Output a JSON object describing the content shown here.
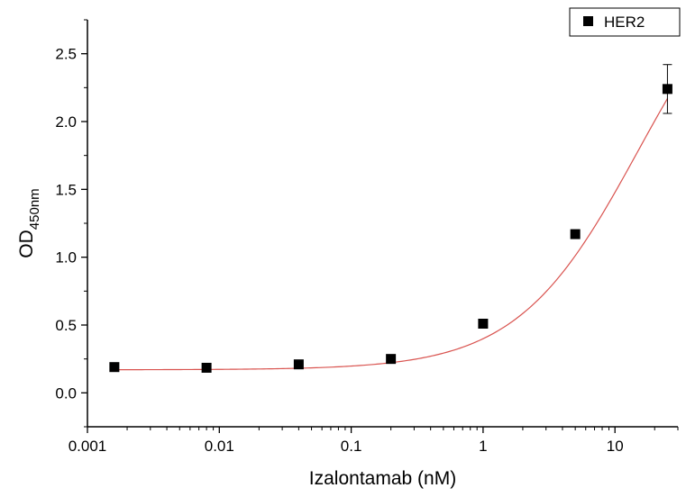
{
  "chart_data": {
    "type": "scatter",
    "title": "",
    "xlabel": "Izalontamab (nM)",
    "ylabel": {
      "main": "OD",
      "sub": "450nm"
    },
    "xscale": "log",
    "xlim": [
      0.001,
      30
    ],
    "ylim": [
      -0.25,
      2.75
    ],
    "xticks": [
      {
        "value": 0.001,
        "label": "0.001"
      },
      {
        "value": 0.01,
        "label": "0.01"
      },
      {
        "value": 0.1,
        "label": "0.1"
      },
      {
        "value": 1,
        "label": "1"
      },
      {
        "value": 10,
        "label": "10"
      }
    ],
    "yticks": [
      {
        "value": 0.0,
        "label": "0.0"
      },
      {
        "value": 0.5,
        "label": "0.5"
      },
      {
        "value": 1.0,
        "label": "1.0"
      },
      {
        "value": 1.5,
        "label": "1.5"
      },
      {
        "value": 2.0,
        "label": "2.0"
      },
      {
        "value": 2.5,
        "label": "2.5"
      }
    ],
    "grid": false,
    "legend_position": "top-right",
    "series": [
      {
        "name": "HER2",
        "marker": "square",
        "color": "#000000",
        "points": [
          {
            "x": 0.0016,
            "y": 0.19
          },
          {
            "x": 0.008,
            "y": 0.185
          },
          {
            "x": 0.04,
            "y": 0.21
          },
          {
            "x": 0.2,
            "y": 0.25
          },
          {
            "x": 1.0,
            "y": 0.51
          },
          {
            "x": 5.0,
            "y": 1.17
          },
          {
            "x": 25.0,
            "y": 2.24,
            "error": 0.18
          }
        ]
      }
    ],
    "fit": {
      "color": "#d9534f",
      "model": "4PL",
      "bottom": 0.17,
      "top": 3.4,
      "ec50": 15,
      "hill": 0.95
    }
  }
}
